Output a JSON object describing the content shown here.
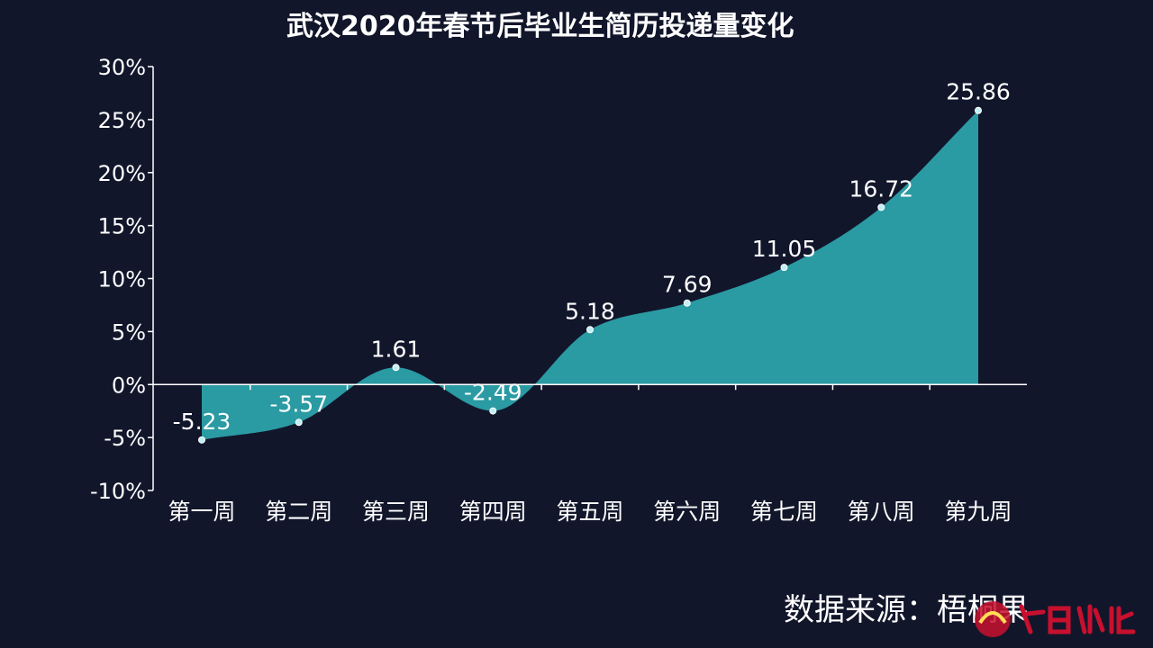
{
  "title": "武汉2020年春节后毕业生简历投递量变化",
  "source_note": "数据来源：梧桐果",
  "logo_text": "今日湖北",
  "colors": {
    "background": "#12162b",
    "area_fill": "#2a9aa3",
    "axis": "#ffffff",
    "text": "#ffffff",
    "marker": "#bff0f5"
  },
  "chart_data": {
    "type": "area",
    "title": "武汉2020年春节后毕业生简历投递量变化",
    "xlabel": "",
    "ylabel": "",
    "categories": [
      "第一周",
      "第二周",
      "第三周",
      "第四周",
      "第五周",
      "第六周",
      "第七周",
      "第八周",
      "第九周"
    ],
    "series": [
      {
        "values": [
          -5.23,
          -3.57,
          1.61,
          -2.49,
          5.18,
          7.69,
          11.05,
          16.72,
          25.86
        ],
        "labels": [
          "-5.23",
          "-3.57",
          "1.61",
          "-2.49",
          "5.18",
          "7.69",
          "11.05",
          "16.72",
          "25.86"
        ]
      }
    ],
    "ylim": [
      -10,
      30
    ],
    "yticks": [
      -10,
      -5,
      0,
      5,
      10,
      15,
      20,
      25,
      30
    ],
    "ytick_labels": [
      "-10%",
      "-5%",
      "0%",
      "5%",
      "10%",
      "15%",
      "20%",
      "25%",
      "30%"
    ],
    "smooth": true,
    "grid": false,
    "legend": "none"
  }
}
